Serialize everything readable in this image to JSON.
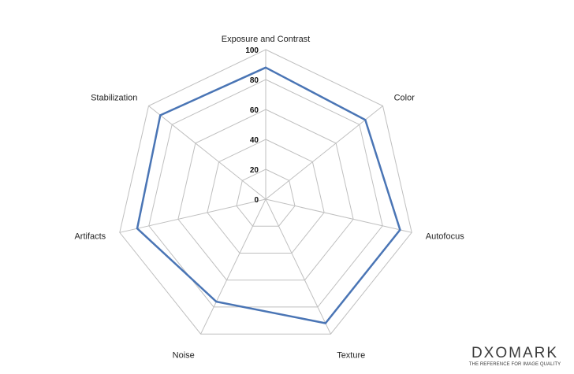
{
  "chart_data": {
    "type": "radar",
    "axes": [
      "Exposure and Contrast",
      "Color",
      "Autofocus",
      "Texture",
      "Noise",
      "Artifacts",
      "Stabilization"
    ],
    "ticks": [
      "0",
      "20",
      "40",
      "60",
      "80",
      "100"
    ],
    "range": [
      0,
      100
    ],
    "series": [
      {
        "values": [
          88,
          85,
          92,
          92,
          76,
          88,
          90
        ]
      }
    ],
    "colors": {
      "series": "#4a75b5",
      "grid": "#bfbfbf"
    },
    "grid": true,
    "legend": "none"
  },
  "watermark": {
    "word": "DXOMARK",
    "tagline": "THE REFERENCE FOR IMAGE QUALITY"
  }
}
